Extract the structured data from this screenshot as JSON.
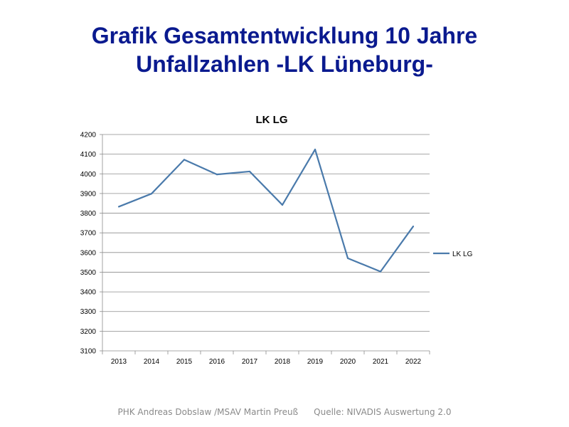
{
  "slide": {
    "title_line1": "Grafik Gesamtentwicklung 10 Jahre",
    "title_line2": "Unfallzahlen -LK Lüneburg-",
    "footer_author": "PHK Andreas Dobslaw /MSAV Martin Preuß",
    "footer_source": "Quelle: NIVADIS Auswertung 2.0",
    "colors": {
      "title": "#0a1a8f",
      "series": "#4a7aab",
      "grid": "#8c8c8c",
      "footer": "#8a8a8a"
    }
  },
  "chart_data": {
    "type": "line",
    "title": "LK LG",
    "xlabel": "",
    "ylabel": "",
    "categories": [
      "2013",
      "2014",
      "2015",
      "2016",
      "2017",
      "2018",
      "2019",
      "2020",
      "2021",
      "2022"
    ],
    "series": [
      {
        "name": "LK LG",
        "values": [
          3833,
          3899,
          4072,
          3997,
          4012,
          3842,
          4124,
          3571,
          3503,
          3733
        ]
      }
    ],
    "ylim": [
      3100,
      4200
    ],
    "yticks": [
      "4200",
      "4100",
      "4000",
      "3900",
      "3800",
      "3700",
      "3600",
      "3500",
      "3400",
      "3300",
      "3200",
      "3100"
    ],
    "grid": true,
    "legend": "right"
  }
}
